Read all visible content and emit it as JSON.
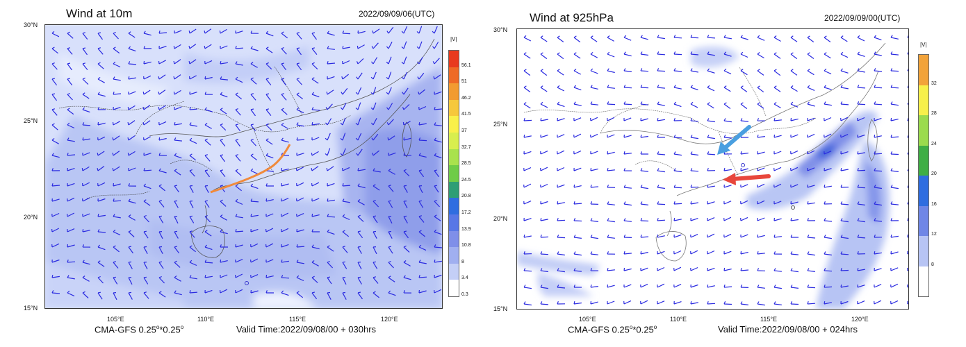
{
  "left_panel": {
    "title": "Wind at 10m",
    "datetime": "2022/09/09/06(UTC)",
    "lat_labels": [
      "30°N",
      "25°N",
      "20°N",
      "15°N"
    ],
    "lon_labels": [
      "105°E",
      "110°E",
      "115°E",
      "120°E"
    ],
    "footer_model": "CMA-GFS  0.25",
    "footer_res_tail": "*0.25",
    "footer_valid": "Valid Time:2022/09/08/00 + 030hrs",
    "colorbar_unit": "|V|",
    "colorbar_levels": [
      "56.1",
      "51",
      "46.2",
      "41.5",
      "37",
      "32.7",
      "28.5",
      "24.5",
      "20.8",
      "17.2",
      "13.9",
      "10.8",
      "8",
      "3.4",
      "0.3"
    ],
    "colorbar_colors": [
      "#e83a1e",
      "#ee6a25",
      "#f29b30",
      "#f6c83c",
      "#f9f04a",
      "#d8ee4e",
      "#a9e24d",
      "#6fcc47",
      "#2e9e75",
      "#2f6de0",
      "#5877e6",
      "#7f8fe9",
      "#a0aff0",
      "#c4cff7",
      "#ffffff"
    ],
    "overlay_line_color": "#f08a3c"
  },
  "right_panel": {
    "title": "Wind at 925hPa",
    "datetime": "2022/09/09/00(UTC)",
    "lat_labels": [
      "30°N",
      "25°N",
      "20°N",
      "15°N"
    ],
    "lon_labels": [
      "105°E",
      "110°E",
      "115°E",
      "120°E"
    ],
    "footer_model": "CMA-GFS  0.25",
    "footer_res_tail": "*0.25",
    "footer_valid": "Valid Time:2022/09/08/00 + 024hrs",
    "colorbar_unit": "|V|",
    "colorbar_levels": [
      "32",
      "28",
      "24",
      "20",
      "16",
      "12",
      "8"
    ],
    "colorbar_colors": [
      "#f2a33a",
      "#f7f04a",
      "#9bdb4d",
      "#3fae45",
      "#2f6de0",
      "#6f86e6",
      "#b7c4f4",
      "#ffffff"
    ],
    "arrow_blue_color": "#4a9fe0",
    "arrow_red_color": "#e8473c"
  }
}
